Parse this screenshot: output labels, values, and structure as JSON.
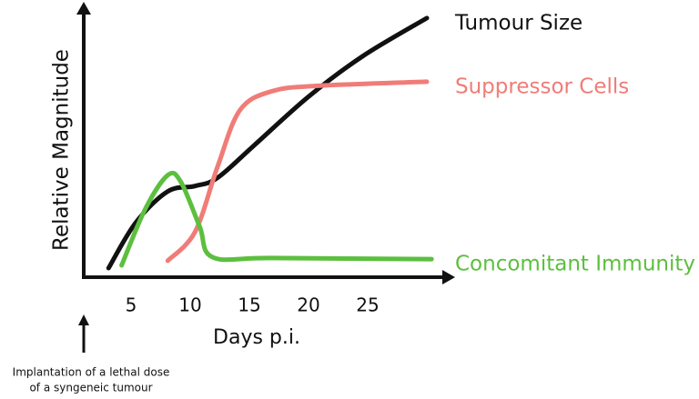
{
  "chart_data": {
    "type": "line",
    "x_label": "Days p.i.",
    "y_label": "Relative Magnitude",
    "annotation": [
      "Implantation of a lethal dose",
      "of a syngeneic tumour"
    ],
    "xlim": [
      1,
      32
    ],
    "xticks": [
      5,
      10,
      15,
      20,
      25
    ],
    "ylim": [
      0,
      100
    ],
    "series": [
      {
        "name": "Tumour Size",
        "color": "#111111",
        "x": [
          3.1,
          5.4,
          8.1,
          10.4,
          12.3,
          15.4,
          20,
          24.6,
          30
        ],
        "values": [
          2.7,
          19.5,
          31,
          33,
          36,
          48,
          66,
          81,
          95
        ]
      },
      {
        "name": "Suppressor Cells",
        "color": "#f07c78",
        "x": [
          8.1,
          10.4,
          12.3,
          14.2,
          16.9,
          20.8,
          30
        ],
        "values": [
          5.4,
          16,
          40,
          61,
          68,
          70,
          71.5
        ]
      },
      {
        "name": "Concomitant Immunity",
        "color": "#5cbf3f",
        "x": [
          4.2,
          6.2,
          8.1,
          9.2,
          10.8,
          11.9,
          16.9,
          30.4
        ],
        "values": [
          3.7,
          24.5,
          37,
          34.6,
          18,
          6.7,
          6.4,
          6
        ]
      }
    ]
  }
}
